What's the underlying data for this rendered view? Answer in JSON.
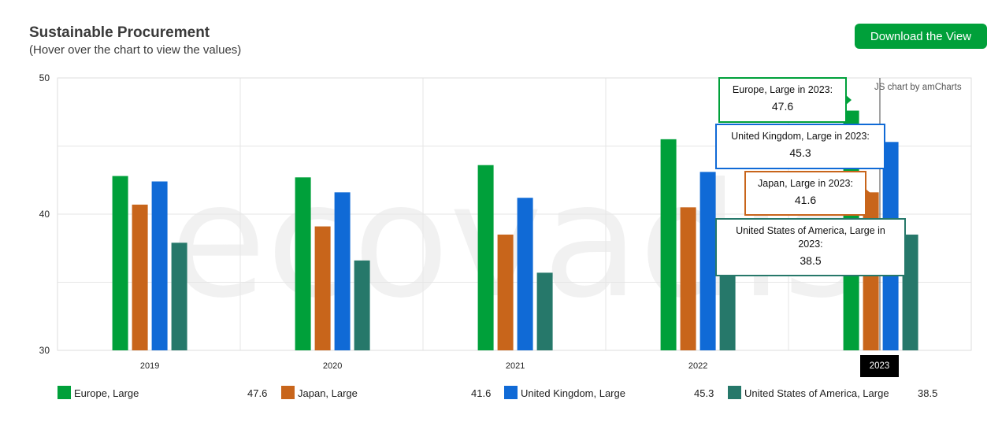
{
  "header": {
    "title": "Sustainable Procurement",
    "subtitle": "(Hover over the chart to view the values)",
    "download_label": "Download the View"
  },
  "credit": "JS chart by amCharts",
  "watermark": "ecovadis",
  "colors": {
    "europe": "#00a03a",
    "japan": "#c8651b",
    "uk": "#106ad6",
    "usa": "#26786a",
    "button": "#00a03a"
  },
  "chart_data": {
    "type": "bar",
    "categories": [
      "2019",
      "2020",
      "2021",
      "2022",
      "2023"
    ],
    "ylim": [
      30,
      50
    ],
    "yticks": [
      30,
      40,
      50
    ],
    "grid": true,
    "legend_position": "bottom",
    "series": [
      {
        "name": "Europe, Large",
        "values": [
          42.8,
          42.7,
          43.6,
          45.5,
          47.6
        ]
      },
      {
        "name": "Japan, Large",
        "values": [
          40.7,
          39.1,
          38.5,
          40.5,
          41.6
        ]
      },
      {
        "name": "United Kingdom, Large",
        "values": [
          42.4,
          41.6,
          41.2,
          43.1,
          45.3
        ]
      },
      {
        "name": "United States of America, Large",
        "values": [
          37.9,
          36.6,
          35.7,
          38.1,
          38.5
        ]
      }
    ],
    "highlighted_category": "2023"
  },
  "tooltips": [
    {
      "label": "Europe, Large in 2023:",
      "value": "47.6"
    },
    {
      "label": "United Kingdom, Large in 2023:",
      "value": "45.3"
    },
    {
      "label": "Japan, Large in 2023:",
      "value": "41.6"
    },
    {
      "label": "United States of America, Large in 2023:",
      "value": "38.5"
    }
  ],
  "legend": [
    {
      "label": "Europe, Large",
      "value": "47.6"
    },
    {
      "label": "Japan, Large",
      "value": "41.6"
    },
    {
      "label": "United Kingdom, Large",
      "value": "45.3"
    },
    {
      "label": "United States of America, Large",
      "value": "38.5"
    }
  ]
}
